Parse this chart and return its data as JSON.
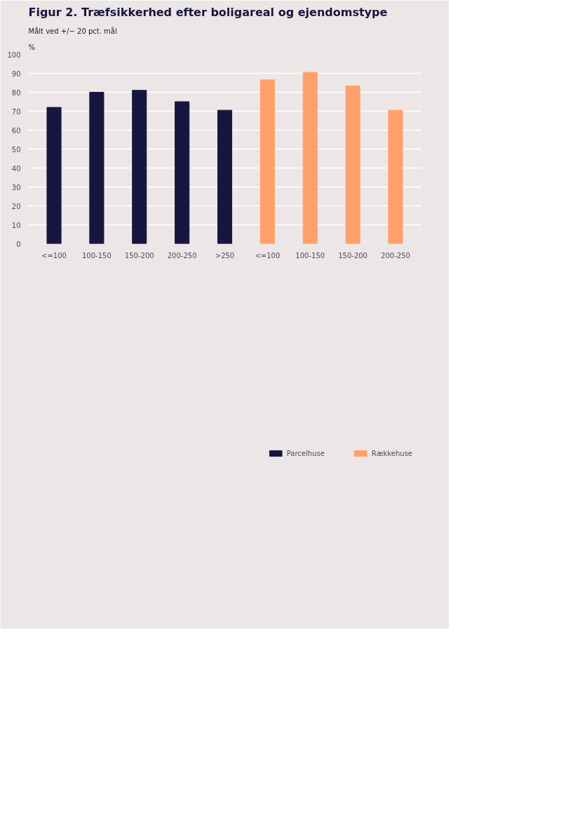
{
  "chart_data": {
    "type": "bar",
    "title": "Figur 2. Træfsikkerhed efter boligareal og ejendomstype",
    "subtitle": "Målt ved +/− 20 pct. mål",
    "ylabel": "%",
    "categories": [
      "<=100",
      "100-150",
      "150-200",
      "200-250",
      ">250",
      "<=100",
      "100-150",
      "150-200",
      "200-250"
    ],
    "series": [
      {
        "name": "Parcelhuse",
        "color": "#16163f",
        "values": [
          72,
          80,
          81,
          75,
          70.5,
          null,
          null,
          null,
          null
        ]
      },
      {
        "name": "Rækkehuse",
        "color": "#ffa06c",
        "values": [
          null,
          null,
          null,
          null,
          null,
          86.5,
          90.5,
          83.3,
          70.5
        ]
      }
    ],
    "ylim": [
      0,
      100
    ],
    "yticks": [
      0,
      10,
      20,
      30,
      40,
      50,
      60,
      70,
      80,
      90,
      100
    ],
    "grid": "y",
    "legend": "bottom right"
  }
}
